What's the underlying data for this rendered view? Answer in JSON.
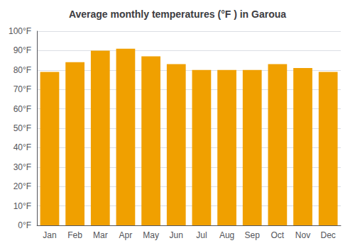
{
  "chart_data": {
    "type": "bar",
    "title": "Average monthly temperatures (°F ) in Garoua",
    "categories": [
      "Jan",
      "Feb",
      "Mar",
      "Apr",
      "May",
      "Jun",
      "Jul",
      "Aug",
      "Sep",
      "Oct",
      "Nov",
      "Dec"
    ],
    "values": [
      79,
      84,
      90,
      91,
      87,
      83,
      80,
      80,
      80,
      83,
      81,
      79
    ],
    "color": "#F0A000",
    "ylim": [
      0,
      100
    ],
    "yticks": [
      {
        "value": 0,
        "label": "0°F"
      },
      {
        "value": 10,
        "label": "10°F"
      },
      {
        "value": 20,
        "label": "20°F"
      },
      {
        "value": 30,
        "label": "30°F"
      },
      {
        "value": 40,
        "label": "40°F"
      },
      {
        "value": 50,
        "label": "50°F"
      },
      {
        "value": 60,
        "label": "60°F"
      },
      {
        "value": 70,
        "label": "70°F"
      },
      {
        "value": 80,
        "label": "80°F"
      },
      {
        "value": 90,
        "label": "90°F"
      },
      {
        "value": 100,
        "label": "100°F"
      }
    ],
    "grid": true
  }
}
